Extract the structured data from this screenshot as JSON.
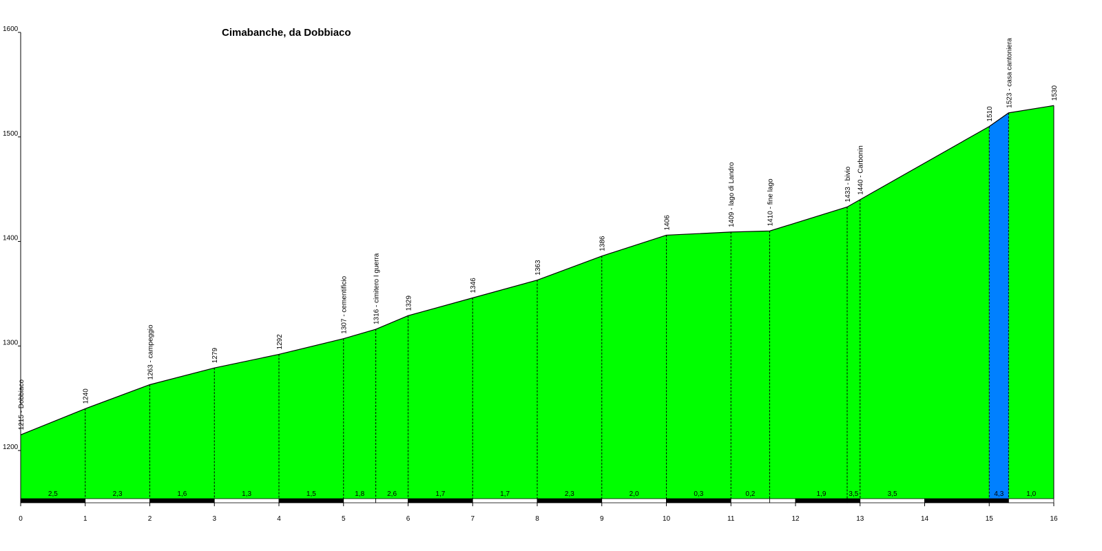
{
  "chart_data": {
    "type": "area",
    "title": "Cimabanche, da Dobbiaco",
    "xlabel": "",
    "ylabel": "",
    "xlim": [
      0,
      16
    ],
    "ylim": [
      1150,
      1600
    ],
    "x_ticks": [
      "0",
      "1",
      "2",
      "3",
      "4",
      "5",
      "6",
      "7",
      "8",
      "9",
      "10",
      "11",
      "12",
      "13",
      "14",
      "15",
      "16"
    ],
    "y_ticks": [
      "1200",
      "1300",
      "1400",
      "1500",
      "1600"
    ],
    "colors": {
      "fill": "#00ff00",
      "highlight": "#0080ff",
      "line": "#000000",
      "axis": "#000000"
    },
    "points": [
      {
        "x": 0,
        "y": 1215,
        "label": "1215 - Dobbiaco"
      },
      {
        "x": 1,
        "y": 1240,
        "label": "1240"
      },
      {
        "x": 2,
        "y": 1263,
        "label": "1263 - campeggio"
      },
      {
        "x": 3,
        "y": 1279,
        "label": "1279"
      },
      {
        "x": 4,
        "y": 1292,
        "label": "1292"
      },
      {
        "x": 5,
        "y": 1307,
        "label": "1307 - cementificio"
      },
      {
        "x": 5.5,
        "y": 1316,
        "label": "1316 - cimitero I guerra"
      },
      {
        "x": 6,
        "y": 1329,
        "label": "1329"
      },
      {
        "x": 7,
        "y": 1346,
        "label": "1346"
      },
      {
        "x": 8,
        "y": 1363,
        "label": "1363"
      },
      {
        "x": 9,
        "y": 1386,
        "label": "1386"
      },
      {
        "x": 10,
        "y": 1406,
        "label": "1406"
      },
      {
        "x": 11,
        "y": 1409,
        "label": "1409 - lago di Landro"
      },
      {
        "x": 11.6,
        "y": 1410,
        "label": "1410 - fine lago"
      },
      {
        "x": 12.8,
        "y": 1433,
        "label": "1433 - bivio"
      },
      {
        "x": 13,
        "y": 1440,
        "label": "1440 - Carbonin"
      },
      {
        "x": 15,
        "y": 1510,
        "label": "1510"
      },
      {
        "x": 15.3,
        "y": 1523,
        "label": "1523 - casa cantoniera"
      },
      {
        "x": 16,
        "y": 1530,
        "label": "1530"
      }
    ],
    "highlight_range": [
      15,
      15.3
    ],
    "segments": [
      {
        "from": 0,
        "to": 1,
        "gradient": "2,5",
        "bar": "black"
      },
      {
        "from": 1,
        "to": 2,
        "gradient": "2,3",
        "bar": "white"
      },
      {
        "from": 2,
        "to": 3,
        "gradient": "1,6",
        "bar": "black"
      },
      {
        "from": 3,
        "to": 4,
        "gradient": "1,3",
        "bar": "white"
      },
      {
        "from": 4,
        "to": 5,
        "gradient": "1,5",
        "bar": "black"
      },
      {
        "from": 5,
        "to": 5.5,
        "gradient": "1,8",
        "bar": "white"
      },
      {
        "from": 5.5,
        "to": 6,
        "gradient": "2,6",
        "bar": "white"
      },
      {
        "from": 6,
        "to": 7,
        "gradient": "1,7",
        "bar": "black"
      },
      {
        "from": 7,
        "to": 8,
        "gradient": "1,7",
        "bar": "white"
      },
      {
        "from": 8,
        "to": 9,
        "gradient": "2,3",
        "bar": "black"
      },
      {
        "from": 9,
        "to": 10,
        "gradient": "2,0",
        "bar": "white"
      },
      {
        "from": 10,
        "to": 11,
        "gradient": "0,3",
        "bar": "black"
      },
      {
        "from": 11,
        "to": 11.6,
        "gradient": "0,2",
        "bar": "white"
      },
      {
        "from": 11.6,
        "to": 12,
        "gradient": "",
        "bar": "white"
      },
      {
        "from": 12,
        "to": 12.8,
        "gradient": "1,9",
        "bar": "black"
      },
      {
        "from": 12.8,
        "to": 13,
        "gradient": "3,5",
        "bar": "black"
      },
      {
        "from": 13,
        "to": 14,
        "gradient": "3,5",
        "bar": "white"
      },
      {
        "from": 14,
        "to": 15,
        "gradient": "",
        "bar": "black"
      },
      {
        "from": 15,
        "to": 15.3,
        "gradient": "4,3",
        "bar": "black"
      },
      {
        "from": 15.3,
        "to": 16,
        "gradient": "1,0",
        "bar": "white"
      }
    ]
  }
}
